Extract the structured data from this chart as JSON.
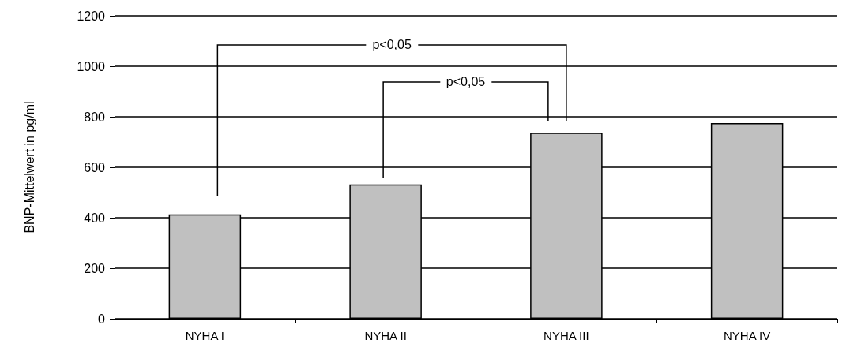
{
  "chart_data": {
    "type": "bar",
    "ylabel": "BNP-Mittelwert in pg/ml",
    "categories": [
      "NYHA I",
      "NYHA II",
      "NYHA III",
      "NYHA IV"
    ],
    "values": [
      413,
      532,
      737,
      775
    ],
    "color": "#c0c0c0",
    "ylim": [
      0,
      1200
    ],
    "yticks": [
      0,
      200,
      400,
      600,
      800,
      1000,
      1200
    ],
    "grid": "y",
    "annotations": [
      "p<0,05",
      "p<0,05"
    ]
  }
}
